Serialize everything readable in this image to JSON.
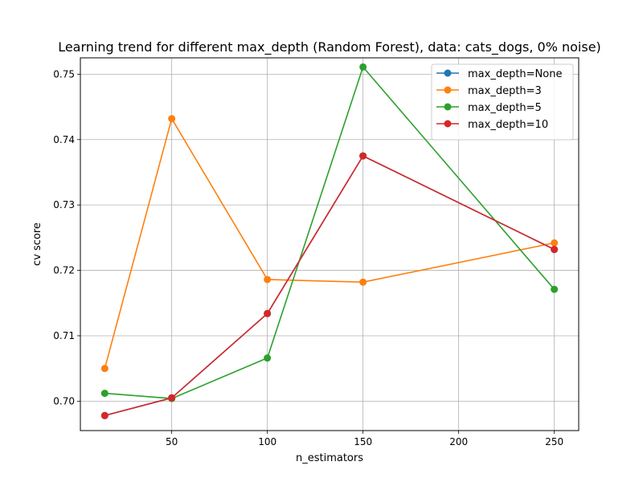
{
  "chart_data": {
    "type": "line",
    "title": "Learning trend for different max_depth (Random Forest), data: cats_dogs, 0% noise)",
    "xlabel": "n_estimators",
    "ylabel": "cv score",
    "xlim": [
      2.25,
      262.75
    ],
    "ylim": [
      0.6955,
      0.7525
    ],
    "x_ticks": [
      50,
      100,
      150,
      200,
      250
    ],
    "y_ticks": [
      0.7,
      0.71,
      0.72,
      0.73,
      0.74,
      0.75
    ],
    "x_tick_labels": [
      "50",
      "100",
      "150",
      "200",
      "250"
    ],
    "y_tick_labels": [
      "0.70",
      "0.71",
      "0.72",
      "0.73",
      "0.74",
      "0.75"
    ],
    "grid": true,
    "legend_position": "top-right",
    "x": [
      15,
      50,
      100,
      150,
      250
    ],
    "series": [
      {
        "name": "max_depth=None",
        "color": "#1f77b4",
        "values": [
          0.6978,
          0.7005,
          0.7134,
          0.7375,
          0.7232
        ]
      },
      {
        "name": "max_depth=3",
        "color": "#ff7f0e",
        "values": [
          0.705,
          0.7432,
          0.7186,
          0.7182,
          0.7242
        ]
      },
      {
        "name": "max_depth=5",
        "color": "#2ca02c",
        "values": [
          0.7012,
          0.7004,
          0.7066,
          0.7511,
          0.7171
        ]
      },
      {
        "name": "max_depth=10",
        "color": "#d62728",
        "values": [
          0.6978,
          0.7005,
          0.7134,
          0.7375,
          0.7232
        ]
      }
    ]
  }
}
